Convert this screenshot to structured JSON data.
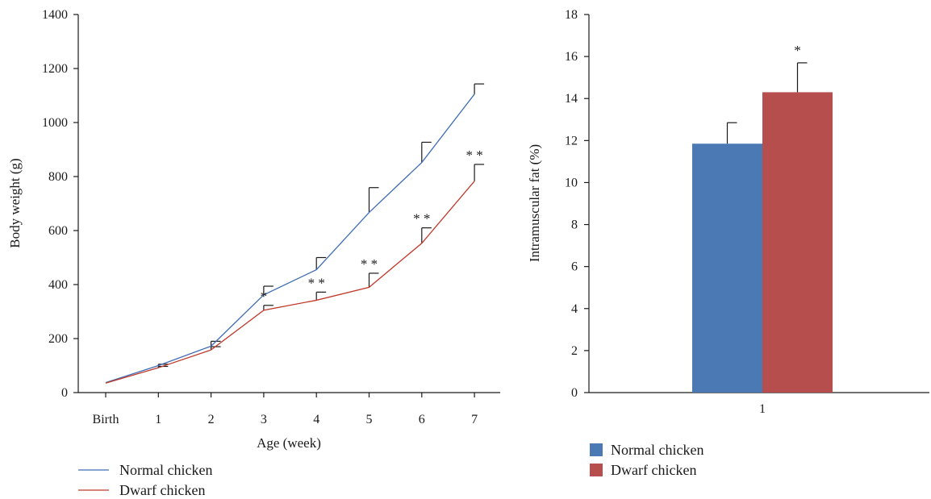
{
  "chart_data": [
    {
      "type": "line",
      "xlabel": "Age (week)",
      "ylabel": "Body weight (g)",
      "categories": [
        "Birth",
        "1",
        "2",
        "3",
        "4",
        "5",
        "6",
        "7"
      ],
      "ylim": [
        0,
        1400
      ],
      "yticks": [
        "0",
        "200",
        "400",
        "600",
        "800",
        "1000",
        "1200",
        "1400"
      ],
      "grid": false,
      "legend_position": "bottom-left",
      "series": [
        {
          "name": "Normal chicken",
          "color": "#3f6db3",
          "values": [
            37,
            100,
            172,
            362,
            455,
            667,
            852,
            1105
          ],
          "error": [
            0,
            5,
            18,
            32,
            45,
            92,
            75,
            38
          ]
        },
        {
          "name": "Dwarf chicken",
          "color": "#c0392b",
          "values": [
            35,
            92,
            158,
            305,
            342,
            390,
            553,
            783
          ],
          "error": [
            0,
            5,
            12,
            18,
            30,
            52,
            57,
            62
          ]
        }
      ],
      "annotations": [
        {
          "category": "3",
          "text": "*"
        },
        {
          "category": "4",
          "text": "* *"
        },
        {
          "category": "5",
          "text": "* *"
        },
        {
          "category": "6",
          "text": "* *"
        },
        {
          "category": "7",
          "text": "* *"
        }
      ]
    },
    {
      "type": "bar",
      "xlabel": "",
      "ylabel": "Intramuscular fat (%)",
      "categories": [
        "1"
      ],
      "ylim": [
        0,
        18
      ],
      "yticks": [
        "0",
        "2",
        "4",
        "6",
        "8",
        "10",
        "12",
        "14",
        "16",
        "18"
      ],
      "grid": false,
      "legend_position": "bottom-left",
      "series": [
        {
          "name": "Normal chicken",
          "color": "#4b79b4",
          "values": [
            11.85
          ],
          "error": [
            1.0
          ]
        },
        {
          "name": "Dwarf chicken",
          "color": "#b54e4c",
          "values": [
            14.3
          ],
          "error": [
            1.4
          ]
        }
      ],
      "annotations": [
        {
          "series": "Dwarf chicken",
          "text": "*"
        }
      ]
    }
  ]
}
